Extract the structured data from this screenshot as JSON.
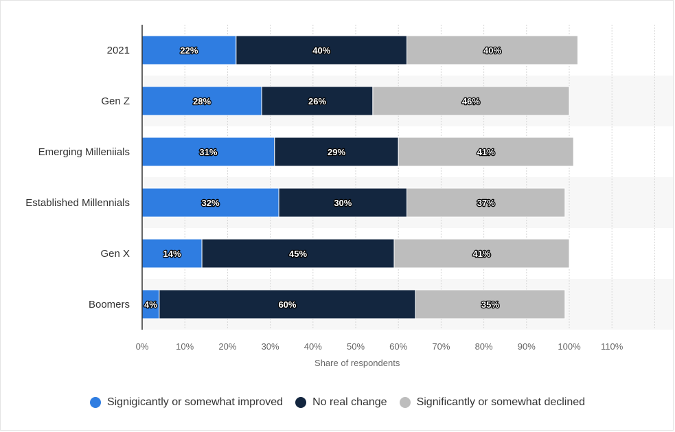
{
  "chart_data": {
    "type": "bar",
    "orientation": "horizontal",
    "stacked": true,
    "categories": [
      "2021",
      "Gen Z",
      "Emerging Milleniials",
      "Established Millennials",
      "Gen X",
      "Boomers"
    ],
    "series": [
      {
        "name": "Signigicantly or somewhat improved",
        "color": "#2f7de1",
        "values": [
          22,
          28,
          31,
          32,
          14,
          4
        ]
      },
      {
        "name": "No real change",
        "color": "#13263f",
        "values": [
          40,
          26,
          29,
          30,
          45,
          60
        ]
      },
      {
        "name": "Significantly or somewhat declined",
        "color": "#bdbdbd",
        "values": [
          40,
          46,
          41,
          37,
          41,
          35
        ]
      }
    ],
    "xlim": [
      0,
      120
    ],
    "xticks": [
      "0%",
      "10%",
      "20%",
      "30%",
      "40%",
      "50%",
      "60%",
      "70%",
      "80%",
      "90%",
      "100%",
      "110%"
    ],
    "xlabel": "Share of respondents",
    "value_suffix": "%",
    "legend_position": "bottom"
  }
}
